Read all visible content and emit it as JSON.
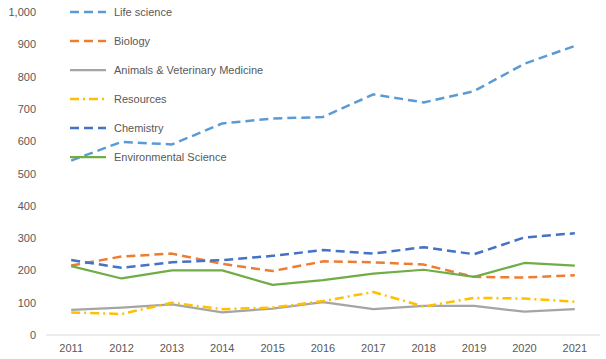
{
  "chart_data": {
    "type": "line",
    "categories": [
      "2011",
      "2012",
      "2013",
      "2014",
      "2015",
      "2016",
      "2017",
      "2018",
      "2019",
      "2020",
      "2021"
    ],
    "series": [
      {
        "name": "Life science",
        "color": "#5b9bd5",
        "line_style": "dashed",
        "values": [
          540,
          598,
          590,
          655,
          670,
          675,
          745,
          720,
          755,
          840,
          895
        ]
      },
      {
        "name": "Biology",
        "color": "#ed7d31",
        "line_style": "dashed",
        "values": [
          215,
          243,
          252,
          220,
          198,
          228,
          225,
          218,
          180,
          178,
          185
        ]
      },
      {
        "name": "Animals & Veterinary Medicine",
        "color": "#a5a5a5",
        "line_style": "solid",
        "values": [
          78,
          85,
          95,
          70,
          82,
          102,
          80,
          90,
          90,
          72,
          80
        ]
      },
      {
        "name": "Resources",
        "color": "#ffc000",
        "line_style": "dashdot",
        "values": [
          70,
          65,
          100,
          80,
          85,
          105,
          133,
          88,
          115,
          113,
          103
        ]
      },
      {
        "name": "Chemistry",
        "color": "#4472c4",
        "line_style": "dashed",
        "values": [
          232,
          208,
          225,
          232,
          245,
          263,
          252,
          272,
          250,
          302,
          315
        ]
      },
      {
        "name": "Environmental Science",
        "color": "#70ad47",
        "line_style": "solid",
        "values": [
          213,
          175,
          200,
          200,
          155,
          170,
          190,
          202,
          180,
          223,
          215
        ]
      }
    ],
    "ylim": [
      0,
      1000
    ],
    "yticks": [
      0,
      100,
      200,
      300,
      400,
      500,
      600,
      700,
      800,
      900,
      {
        "value": 1000,
        "label": "1,000"
      }
    ],
    "grid": false,
    "legend": "upper left"
  }
}
